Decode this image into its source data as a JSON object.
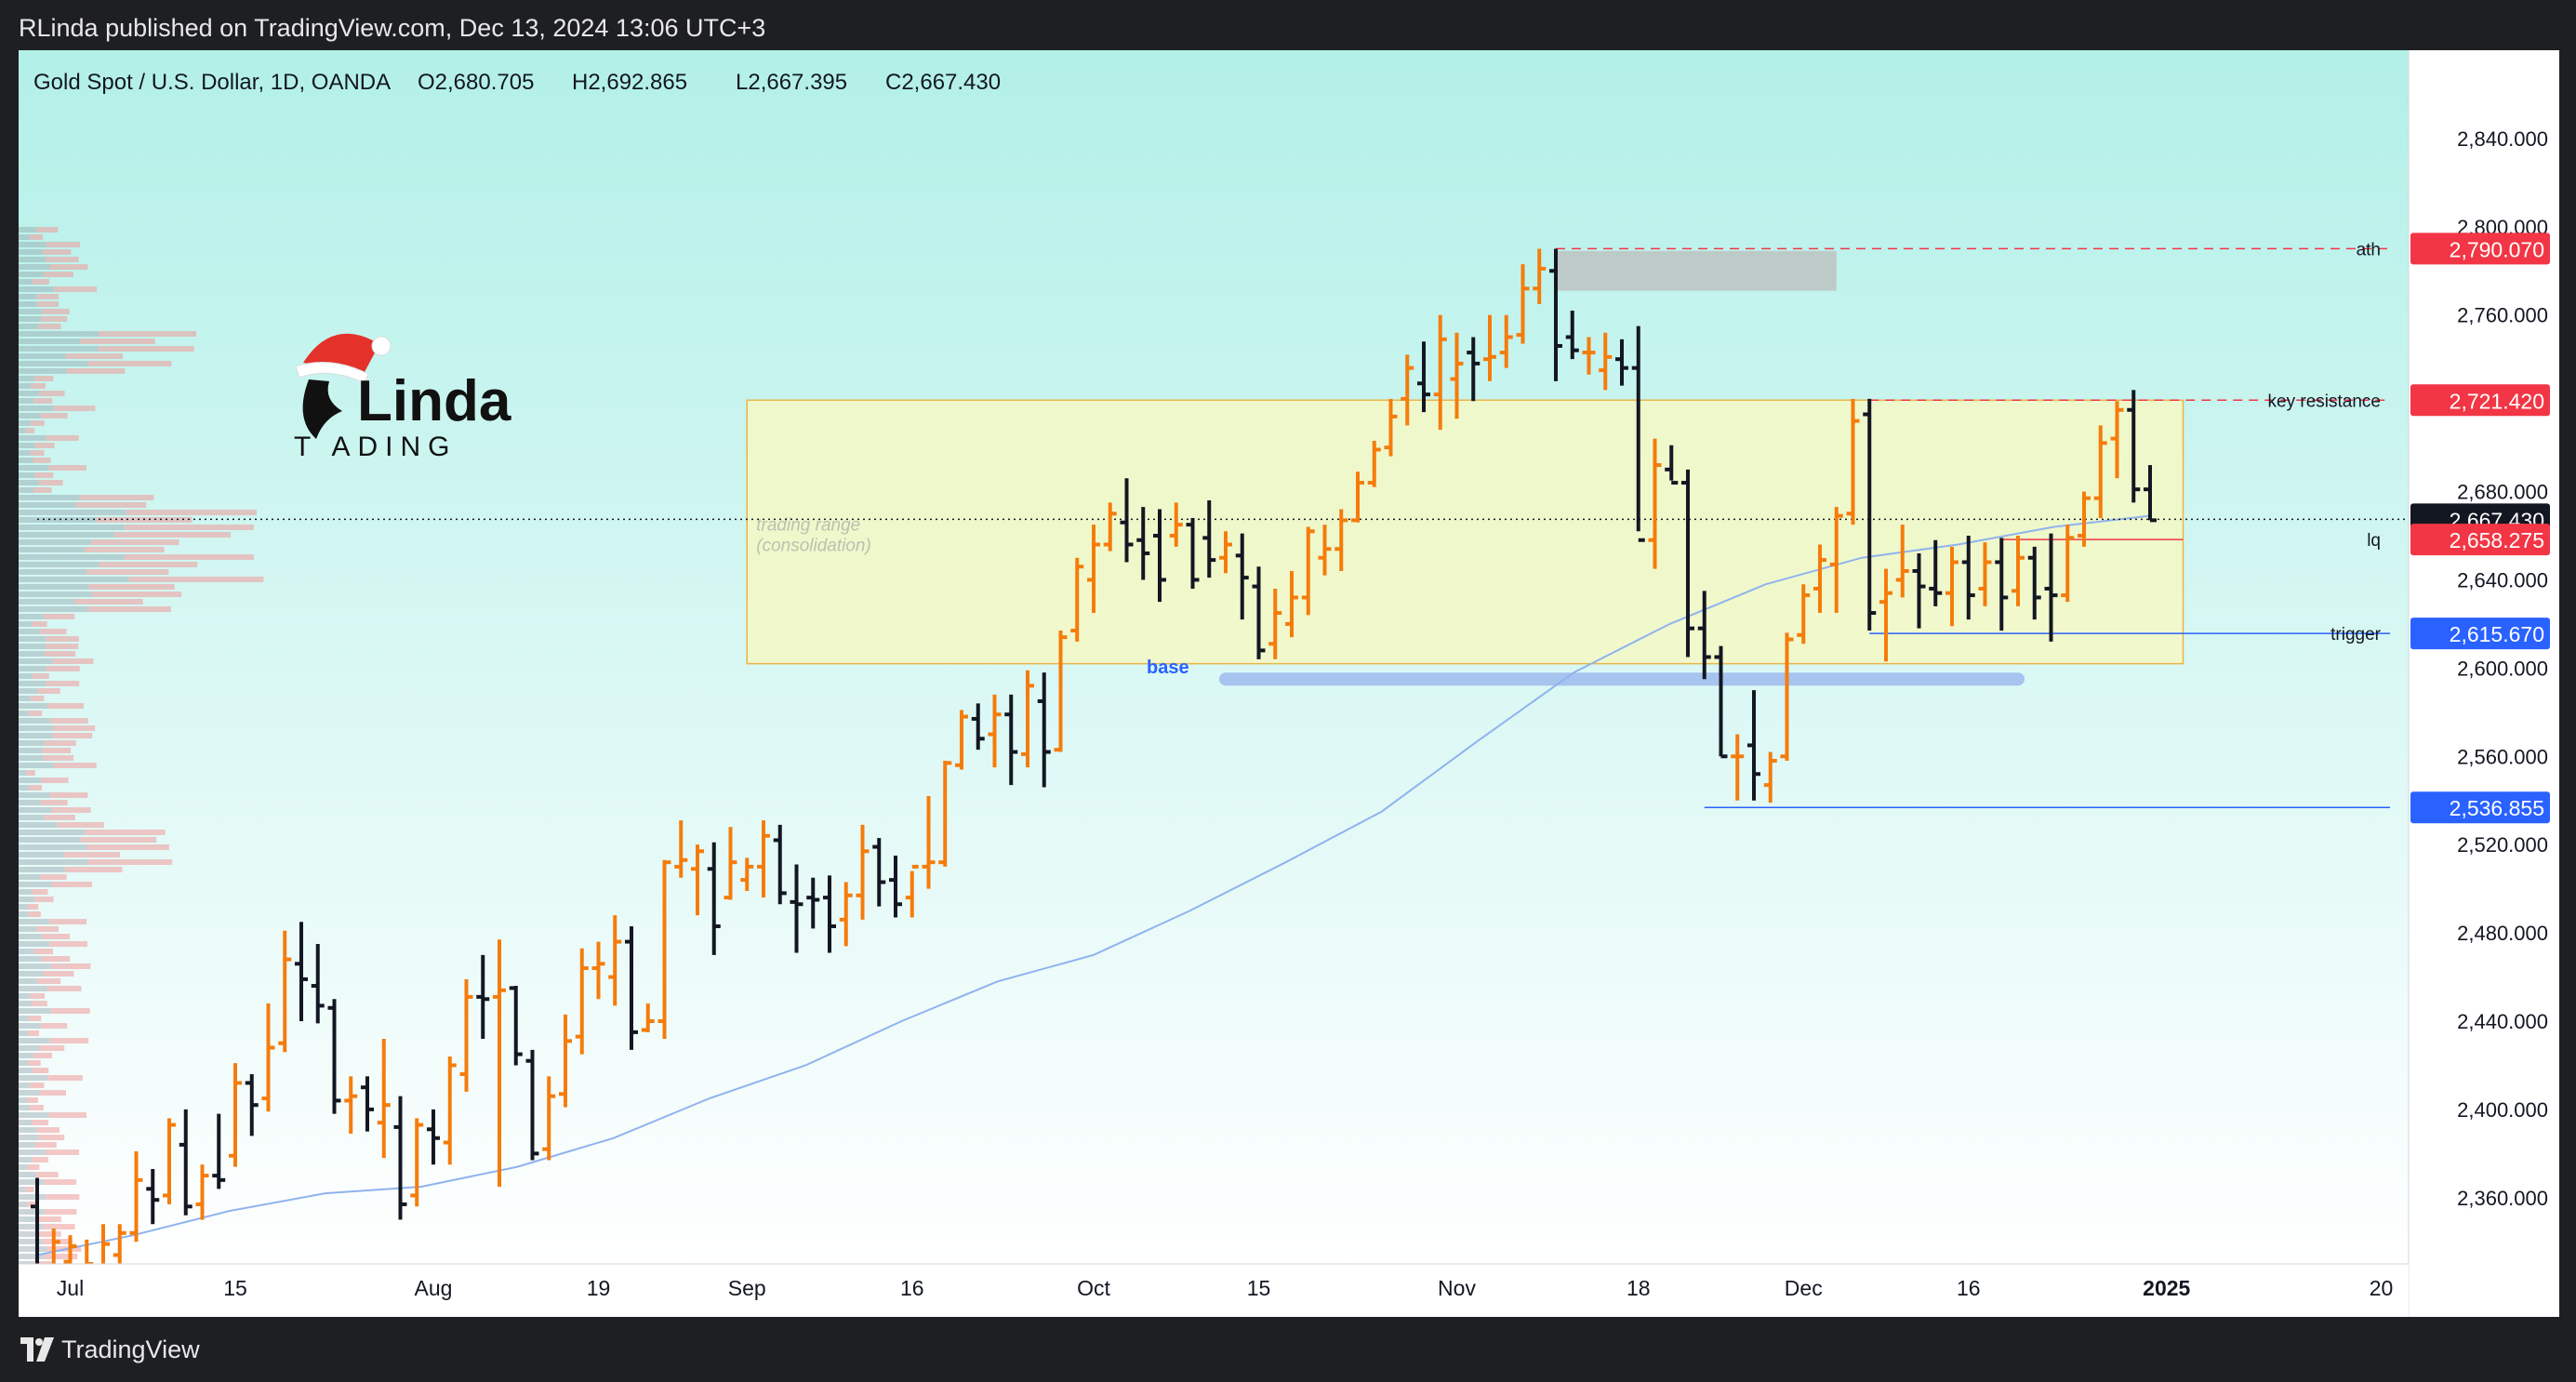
{
  "header": {
    "published": "RLinda published on TradingView.com, Dec 13, 2024 13:06 UTC+3"
  },
  "footer": {
    "brand": "TradingView"
  },
  "logo": {
    "text_top": "Linda",
    "text_bottom": "T ADING"
  },
  "chart_data": {
    "type": "ohlc",
    "title": "Gold Spot / U.S. Dollar, 1D, OANDA",
    "ohlc_header": {
      "o": "O2,680.705",
      "h": "H2,692.865",
      "l": "L2,667.395",
      "c": "C2,667.430"
    },
    "ylim": [
      2330,
      2880
    ],
    "yticks": [
      2360,
      2400,
      2440,
      2480,
      2520,
      2560,
      2600,
      2640,
      2680,
      2720,
      2760,
      2800,
      2840
    ],
    "ytick_labels": [
      "2,360.000",
      "2,400.000",
      "2,440.000",
      "2,480.000",
      "2,520.000",
      "2,560.000",
      "2,600.000",
      "2,640.000",
      "2,680.000",
      "2,720.000",
      "2,760.000",
      "2,800.000",
      "2,840.000"
    ],
    "xticks": [
      {
        "label": "Jul",
        "bar": 2,
        "bold": false
      },
      {
        "label": "15",
        "bar": 12,
        "bold": false
      },
      {
        "label": "Aug",
        "bar": 24,
        "bold": false
      },
      {
        "label": "19",
        "bar": 34,
        "bold": false
      },
      {
        "label": "Sep",
        "bar": 43,
        "bold": false
      },
      {
        "label": "16",
        "bar": 53,
        "bold": false
      },
      {
        "label": "Oct",
        "bar": 64,
        "bold": false
      },
      {
        "label": "15",
        "bar": 74,
        "bold": false
      },
      {
        "label": "Nov",
        "bar": 86,
        "bold": false
      },
      {
        "label": "18",
        "bar": 97,
        "bold": false
      },
      {
        "label": "Dec",
        "bar": 107,
        "bold": false
      },
      {
        "label": "16",
        "bar": 117,
        "bold": false
      },
      {
        "label": "2025",
        "bar": 129,
        "bold": true
      },
      {
        "label": "20",
        "bar": 142,
        "bold": false
      }
    ],
    "bars": [
      [
        2356,
        2369,
        2323,
        2327
      ],
      [
        2326,
        2346,
        2318,
        2340
      ],
      [
        2331,
        2343,
        2326,
        2338
      ],
      [
        2328,
        2341,
        2318,
        2330
      ],
      [
        2326,
        2348,
        2320,
        2339
      ],
      [
        2334,
        2348,
        2330,
        2344
      ],
      [
        2344,
        2381,
        2340,
        2368
      ],
      [
        2364,
        2373,
        2348,
        2359
      ],
      [
        2361,
        2396,
        2357,
        2393
      ],
      [
        2384,
        2400,
        2352,
        2356
      ],
      [
        2357,
        2375,
        2350,
        2370
      ],
      [
        2370,
        2398,
        2364,
        2368
      ],
      [
        2379,
        2421,
        2374,
        2412
      ],
      [
        2412,
        2416,
        2388,
        2402
      ],
      [
        2405,
        2448,
        2399,
        2428
      ],
      [
        2430,
        2481,
        2426,
        2468
      ],
      [
        2466,
        2485,
        2440,
        2459
      ],
      [
        2456,
        2475,
        2439,
        2447
      ],
      [
        2446,
        2450,
        2398,
        2404
      ],
      [
        2404,
        2415,
        2389,
        2406
      ],
      [
        2410,
        2415,
        2390,
        2400
      ],
      [
        2394,
        2432,
        2378,
        2402
      ],
      [
        2392,
        2406,
        2350,
        2357
      ],
      [
        2361,
        2396,
        2356,
        2393
      ],
      [
        2391,
        2400,
        2375,
        2387
      ],
      [
        2385,
        2424,
        2375,
        2420
      ],
      [
        2416,
        2459,
        2408,
        2451
      ],
      [
        2451,
        2470,
        2432,
        2450
      ],
      [
        2451,
        2477,
        2365,
        2454
      ],
      [
        2455,
        2456,
        2420,
        2425
      ],
      [
        2422,
        2427,
        2377,
        2380
      ],
      [
        2382,
        2415,
        2377,
        2406
      ],
      [
        2407,
        2443,
        2401,
        2431
      ],
      [
        2433,
        2473,
        2425,
        2464
      ],
      [
        2464,
        2476,
        2450,
        2466
      ],
      [
        2460,
        2488,
        2447,
        2476
      ],
      [
        2476,
        2483,
        2427,
        2435
      ],
      [
        2436,
        2448,
        2435,
        2440
      ],
      [
        2440,
        2513,
        2432,
        2512
      ],
      [
        2510,
        2531,
        2505,
        2513
      ],
      [
        2509,
        2520,
        2488,
        2517
      ],
      [
        2509,
        2521,
        2470,
        2483
      ],
      [
        2496,
        2528,
        2495,
        2512
      ],
      [
        2504,
        2514,
        2499,
        2510
      ],
      [
        2510,
        2531,
        2496,
        2524
      ],
      [
        2522,
        2529,
        2493,
        2498
      ],
      [
        2494,
        2511,
        2471,
        2493
      ],
      [
        2496,
        2505,
        2482,
        2495
      ],
      [
        2496,
        2506,
        2471,
        2483
      ],
      [
        2486,
        2503,
        2474,
        2497
      ],
      [
        2497,
        2529,
        2486,
        2517
      ],
      [
        2519,
        2523,
        2492,
        2503
      ],
      [
        2504,
        2515,
        2487,
        2493
      ],
      [
        2496,
        2508,
        2487,
        2510
      ],
      [
        2510,
        2542,
        2500,
        2512
      ],
      [
        2512,
        2558,
        2510,
        2557
      ],
      [
        2556,
        2581,
        2554,
        2578
      ],
      [
        2577,
        2584,
        2563,
        2568
      ],
      [
        2570,
        2588,
        2555,
        2579
      ],
      [
        2579,
        2588,
        2547,
        2562
      ],
      [
        2561,
        2599,
        2555,
        2592
      ],
      [
        2585,
        2598,
        2546,
        2562
      ],
      [
        2563,
        2617,
        2562,
        2614
      ],
      [
        2617,
        2650,
        2612,
        2646
      ],
      [
        2640,
        2665,
        2625,
        2656
      ],
      [
        2656,
        2675,
        2653,
        2670
      ],
      [
        2666,
        2686,
        2648,
        2656
      ],
      [
        2658,
        2673,
        2640,
        2652
      ],
      [
        2660,
        2672,
        2630,
        2640
      ],
      [
        2660,
        2675,
        2655,
        2665
      ],
      [
        2665,
        2668,
        2636,
        2640
      ],
      [
        2659,
        2676,
        2641,
        2649
      ],
      [
        2650,
        2662,
        2643,
        2656
      ],
      [
        2651,
        2661,
        2622,
        2641
      ],
      [
        2637,
        2646,
        2604,
        2608
      ],
      [
        2611,
        2636,
        2604,
        2625
      ],
      [
        2620,
        2644,
        2614,
        2632
      ],
      [
        2632,
        2664,
        2624,
        2662
      ],
      [
        2650,
        2665,
        2642,
        2654
      ],
      [
        2654,
        2672,
        2644,
        2667
      ],
      [
        2667,
        2689,
        2666,
        2684
      ],
      [
        2684,
        2703,
        2682,
        2699
      ],
      [
        2700,
        2722,
        2696,
        2714
      ],
      [
        2722,
        2742,
        2710,
        2736
      ],
      [
        2729,
        2748,
        2716,
        2724
      ],
      [
        2724,
        2760,
        2708,
        2749
      ],
      [
        2731,
        2752,
        2713,
        2738
      ],
      [
        2743,
        2750,
        2721,
        2738
      ],
      [
        2740,
        2760,
        2730,
        2741
      ],
      [
        2743,
        2760,
        2736,
        2750
      ],
      [
        2751,
        2783,
        2747,
        2772
      ],
      [
        2772,
        2790,
        2765,
        2781
      ],
      [
        2780,
        2790,
        2730,
        2746
      ],
      [
        2750,
        2762,
        2740,
        2744
      ],
      [
        2743,
        2750,
        2733,
        2743
      ],
      [
        2735,
        2752,
        2726,
        2741
      ],
      [
        2740,
        2749,
        2728,
        2736
      ],
      [
        2736,
        2755,
        2662,
        2658
      ],
      [
        2658,
        2704,
        2645,
        2692
      ],
      [
        2690,
        2701,
        2685,
        2684
      ],
      [
        2684,
        2690,
        2605,
        2618
      ],
      [
        2618,
        2635,
        2595,
        2605
      ],
      [
        2605,
        2610,
        2560,
        2560
      ],
      [
        2560,
        2570,
        2540,
        2560
      ],
      [
        2565,
        2590,
        2540,
        2552
      ],
      [
        2547,
        2562,
        2539,
        2558
      ],
      [
        2560,
        2616,
        2558,
        2613
      ],
      [
        2615,
        2638,
        2611,
        2633
      ],
      [
        2636,
        2656,
        2625,
        2649
      ],
      [
        2647,
        2673,
        2625,
        2669
      ],
      [
        2670,
        2722,
        2665,
        2712
      ],
      [
        2715,
        2722,
        2617,
        2625
      ],
      [
        2630,
        2645,
        2603,
        2634
      ],
      [
        2640,
        2665,
        2632,
        2644
      ],
      [
        2644,
        2652,
        2618,
        2637
      ],
      [
        2636,
        2658,
        2628,
        2634
      ],
      [
        2634,
        2655,
        2619,
        2648
      ],
      [
        2648,
        2660,
        2622,
        2633
      ],
      [
        2636,
        2657,
        2628,
        2648
      ],
      [
        2648,
        2659,
        2617,
        2632
      ],
      [
        2635,
        2660,
        2628,
        2650
      ],
      [
        2650,
        2655,
        2622,
        2632
      ],
      [
        2636,
        2661,
        2612,
        2633
      ],
      [
        2633,
        2665,
        2630,
        2659
      ],
      [
        2660,
        2680,
        2655,
        2677
      ],
      [
        2677,
        2710,
        2668,
        2702
      ],
      [
        2704,
        2721,
        2686,
        2717
      ],
      [
        2717,
        2726,
        2675,
        2681
      ],
      [
        2681,
        2692,
        2667,
        2667
      ]
    ],
    "ma": [
      2334,
      2343,
      2354,
      2362,
      2365,
      2374,
      2387,
      2405,
      2420,
      2440,
      2458,
      2470,
      2490,
      2512,
      2535,
      2567,
      2598,
      2620,
      2638,
      2650,
      2656,
      2664,
      2669
    ],
    "zones": [
      {
        "label": "trading range\n(consolidation)",
        "from_bar": 43,
        "to_bar": 130,
        "y_top": 2721.42,
        "y_bottom": 2602,
        "fill": "#f4f8c4",
        "stroke": "#e8b54a"
      },
      {
        "label": "",
        "from_bar": 92,
        "to_bar": 109,
        "y_top": 2789,
        "y_bottom": 2771,
        "fill": "#bcbcbc",
        "stroke": "none"
      }
    ],
    "levels": [
      {
        "name": "ath",
        "value": 2790.07,
        "label": "2,790.070",
        "color": "#f23645",
        "style": "dashed",
        "from_bar": 92
      },
      {
        "name": "key resistance",
        "value": 2721.42,
        "label": "2,721.420",
        "color": "#f23645",
        "style": "dashed",
        "from_bar": 111
      },
      {
        "name": "",
        "value": 2667.43,
        "label": "2,667.430",
        "color": "#131722",
        "style": "dotted",
        "from_bar": 0
      },
      {
        "name": "lq",
        "value": 2658.275,
        "label": "2,658.275",
        "color": "#f23645",
        "style": "solid",
        "from_bar": 119
      },
      {
        "name": "trigger",
        "value": 2615.67,
        "label": "2,615.670",
        "color": "#2962ff",
        "style": "solid",
        "from_bar": 111
      },
      {
        "name": "",
        "value": 2536.855,
        "label": "2,536.855",
        "color": "#2962ff",
        "style": "solid",
        "from_bar": 101
      }
    ],
    "base_label": "base",
    "base_line": {
      "from_bar": 72,
      "to_bar": 120,
      "value": 2595
    },
    "colors": {
      "up": "#f57c0b",
      "down": "#131722",
      "ma": "#8fb3ee",
      "bg_top": "#b2f0e8",
      "bg_bottom": "#ffffff",
      "base": "#a7c3ef"
    }
  }
}
